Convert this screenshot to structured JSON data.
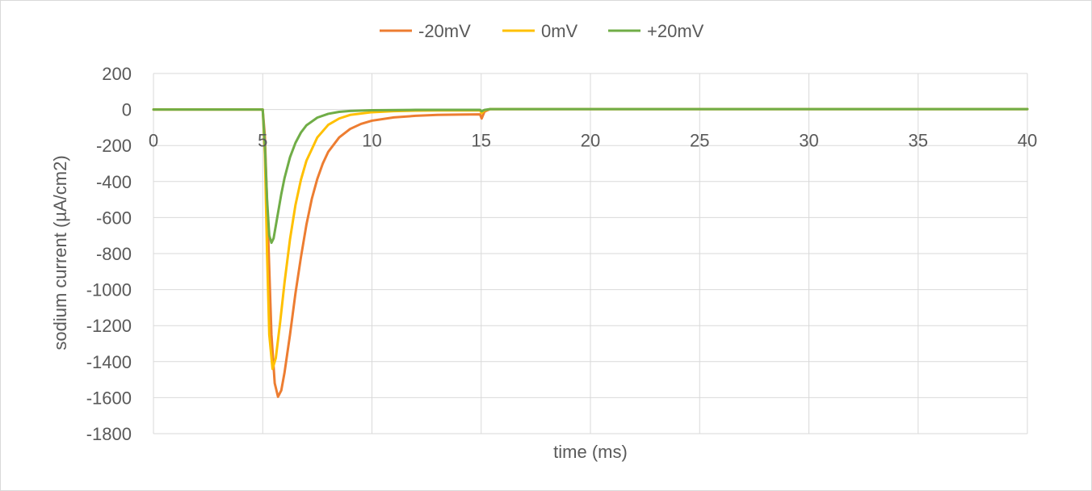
{
  "chart_data": {
    "type": "line",
    "title": "",
    "xlabel": "time (ms)",
    "ylabel": "sodium current (µA/cm2)",
    "xlim": [
      0,
      40
    ],
    "ylim": [
      -1800,
      200
    ],
    "x_ticks": [
      "0",
      "5",
      "10",
      "15",
      "20",
      "25",
      "30",
      "35",
      "40"
    ],
    "y_ticks": [
      "200",
      "0",
      "-200",
      "-400",
      "-600",
      "-800",
      "-1000",
      "-1200",
      "-1400",
      "-1600",
      "-1800"
    ],
    "grid": true,
    "legend_position": "top",
    "series": [
      {
        "name": "-20mV",
        "color": "#ed7d31",
        "points": [
          [
            0,
            0
          ],
          [
            5,
            0
          ],
          [
            5.1,
            -150
          ],
          [
            5.25,
            -700
          ],
          [
            5.4,
            -1250
          ],
          [
            5.55,
            -1520
          ],
          [
            5.7,
            -1595
          ],
          [
            5.85,
            -1560
          ],
          [
            6,
            -1460
          ],
          [
            6.25,
            -1250
          ],
          [
            6.5,
            -1020
          ],
          [
            6.75,
            -820
          ],
          [
            7,
            -640
          ],
          [
            7.25,
            -495
          ],
          [
            7.5,
            -385
          ],
          [
            7.75,
            -300
          ],
          [
            8,
            -235
          ],
          [
            8.5,
            -155
          ],
          [
            9,
            -108
          ],
          [
            9.5,
            -80
          ],
          [
            10,
            -62
          ],
          [
            11,
            -44
          ],
          [
            12,
            -35
          ],
          [
            13,
            -30
          ],
          [
            14,
            -28
          ],
          [
            14.95,
            -27
          ],
          [
            15.02,
            -50
          ],
          [
            15.15,
            -12
          ],
          [
            15.4,
            2
          ],
          [
            16,
            2
          ],
          [
            20,
            2
          ],
          [
            25,
            2
          ],
          [
            30,
            2
          ],
          [
            35,
            2
          ],
          [
            40,
            2
          ]
        ]
      },
      {
        "name": "0mV",
        "color": "#ffc000",
        "points": [
          [
            0,
            0
          ],
          [
            5,
            0
          ],
          [
            5.1,
            -250
          ],
          [
            5.2,
            -800
          ],
          [
            5.3,
            -1250
          ],
          [
            5.45,
            -1440
          ],
          [
            5.6,
            -1380
          ],
          [
            5.8,
            -1180
          ],
          [
            6,
            -960
          ],
          [
            6.25,
            -720
          ],
          [
            6.5,
            -530
          ],
          [
            6.75,
            -390
          ],
          [
            7,
            -285
          ],
          [
            7.5,
            -155
          ],
          [
            8,
            -85
          ],
          [
            8.5,
            -50
          ],
          [
            9,
            -30
          ],
          [
            10,
            -15
          ],
          [
            11,
            -9
          ],
          [
            12,
            -6
          ],
          [
            13,
            -5
          ],
          [
            14,
            -5
          ],
          [
            14.95,
            -5
          ],
          [
            15.02,
            -20
          ],
          [
            15.15,
            -5
          ],
          [
            15.4,
            2
          ],
          [
            16,
            2
          ],
          [
            20,
            2
          ],
          [
            25,
            2
          ],
          [
            30,
            2
          ],
          [
            35,
            2
          ],
          [
            40,
            2
          ]
        ]
      },
      {
        "name": "+20mV",
        "color": "#70ad47",
        "points": [
          [
            0,
            0
          ],
          [
            5,
            0
          ],
          [
            5.1,
            -200
          ],
          [
            5.2,
            -500
          ],
          [
            5.3,
            -700
          ],
          [
            5.4,
            -740
          ],
          [
            5.5,
            -715
          ],
          [
            5.65,
            -610
          ],
          [
            5.85,
            -470
          ],
          [
            6,
            -380
          ],
          [
            6.25,
            -265
          ],
          [
            6.5,
            -185
          ],
          [
            6.75,
            -128
          ],
          [
            7,
            -88
          ],
          [
            7.5,
            -45
          ],
          [
            8,
            -24
          ],
          [
            8.5,
            -13
          ],
          [
            9,
            -8
          ],
          [
            10,
            -4
          ],
          [
            12,
            -2
          ],
          [
            14.95,
            -2
          ],
          [
            15.02,
            -10
          ],
          [
            15.15,
            -2
          ],
          [
            15.4,
            2
          ],
          [
            16,
            2
          ],
          [
            20,
            2
          ],
          [
            25,
            2
          ],
          [
            30,
            2
          ],
          [
            35,
            2
          ],
          [
            40,
            2
          ]
        ]
      }
    ]
  }
}
